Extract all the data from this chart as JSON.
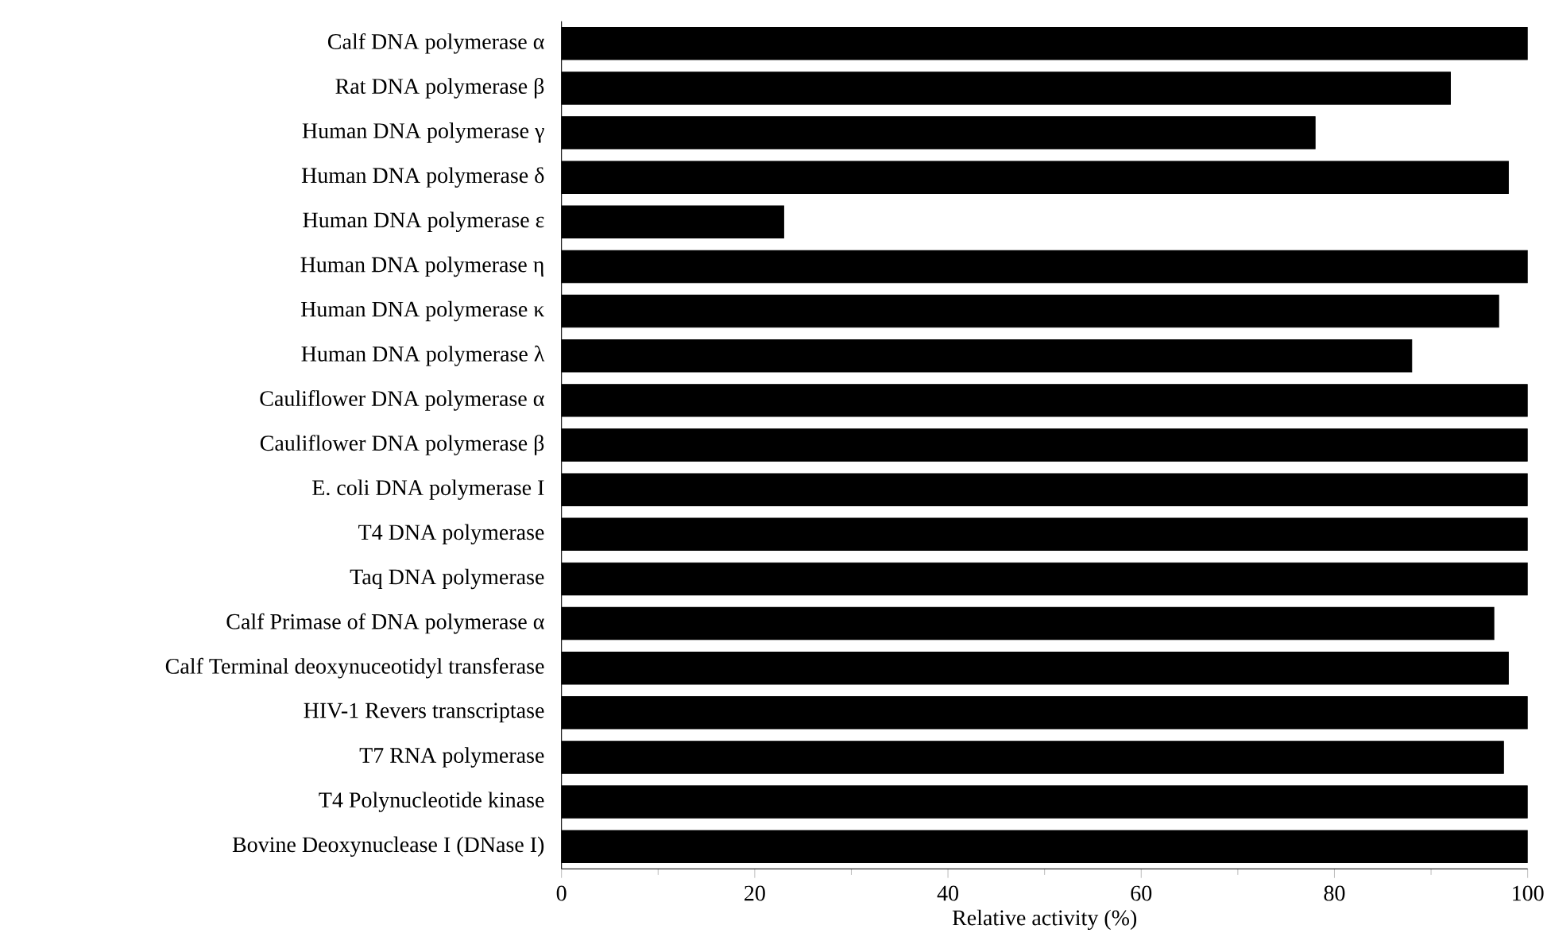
{
  "chart_data": {
    "type": "bar",
    "orientation": "horizontal",
    "xlabel": "Relative activity (%)",
    "categories": [
      "Calf DNA polymerase α",
      "Rat DNA polymerase β",
      "Human DNA polymerase γ",
      "Human DNA polymerase δ",
      "Human DNA polymerase ε",
      "Human DNA polymerase η",
      "Human DNA polymerase κ",
      "Human DNA polymerase λ",
      "Cauliflower DNA polymerase α",
      "Cauliflower DNA polymerase β",
      "E. coli DNA polymerase I",
      "T4 DNA polymerase",
      "Taq DNA polymerase",
      "Calf Primase of DNA polymerase α",
      "Calf Terminal deoxynuceotidyl transferase",
      "HIV-1 Revers transcriptase",
      "T7 RNA polymerase",
      "T4 Polynucleotide kinase",
      "Bovine Deoxynuclease I (DNase I)"
    ],
    "values": [
      100,
      92,
      78,
      98,
      23,
      100,
      97,
      88,
      100,
      100,
      100,
      100,
      100,
      96.5,
      98,
      100,
      97.5,
      100,
      100
    ],
    "color": "#000000",
    "xlim": [
      0,
      100
    ],
    "xticks": [
      0,
      20,
      40,
      60,
      80,
      100
    ],
    "grid": false
  }
}
